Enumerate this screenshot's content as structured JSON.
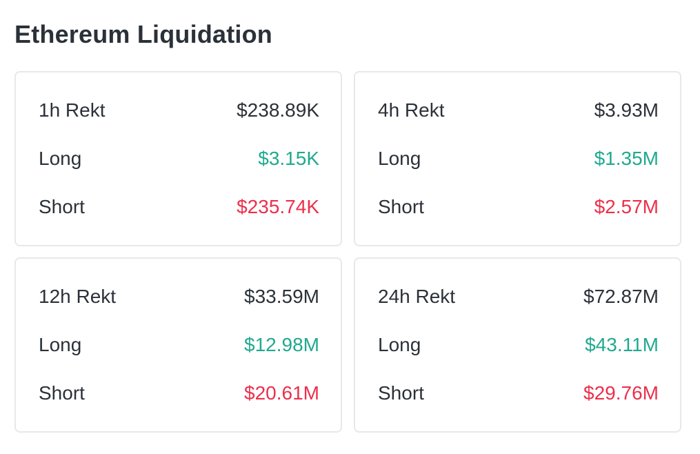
{
  "title": "Ethereum Liquidation",
  "colors": {
    "long": "#20a98f",
    "short": "#ec2f4b",
    "text": "#2b3139",
    "border": "#e6e8ea"
  },
  "cards": [
    {
      "period": "1h Rekt",
      "total": "$238.89K",
      "long_label": "Long",
      "long": "$3.15K",
      "short_label": "Short",
      "short": "$235.74K"
    },
    {
      "period": "4h Rekt",
      "total": "$3.93M",
      "long_label": "Long",
      "long": "$1.35M",
      "short_label": "Short",
      "short": "$2.57M"
    },
    {
      "period": "12h Rekt",
      "total": "$33.59M",
      "long_label": "Long",
      "long": "$12.98M",
      "short_label": "Short",
      "short": "$20.61M"
    },
    {
      "period": "24h Rekt",
      "total": "$72.87M",
      "long_label": "Long",
      "long": "$43.11M",
      "short_label": "Short",
      "short": "$29.76M"
    }
  ]
}
